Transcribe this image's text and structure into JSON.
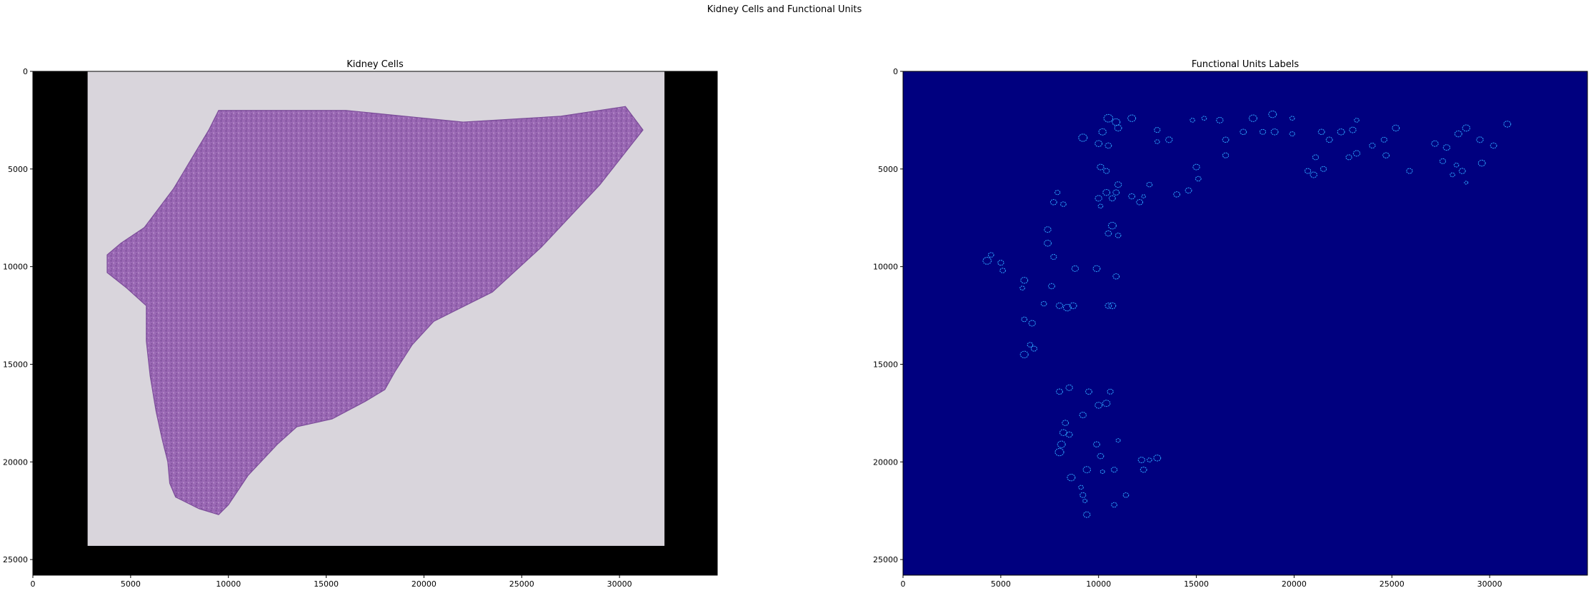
{
  "figure": {
    "suptitle": "Kidney Cells and Functional Units"
  },
  "colors": {
    "background": "#ffffff",
    "black_pad": "#000000",
    "slide": "#d9d5dc",
    "tissue": "#9a68b4",
    "tissue_dark": "#7c4d9a",
    "tissue_light": "#b890cc",
    "label_bg": "#00007f",
    "label_edge": "#2fa8ff"
  },
  "chart_data": [
    {
      "type": "image",
      "title": "Kidney Cells",
      "xlim": [
        0,
        35000
      ],
      "ylim": [
        25800,
        0
      ],
      "x_ticks": [
        0,
        5000,
        10000,
        15000,
        20000,
        25000,
        30000
      ],
      "y_ticks": [
        0,
        5000,
        10000,
        15000,
        20000,
        25000
      ],
      "x_tick_labels": [
        "0",
        "5000",
        "10000",
        "15000",
        "20000",
        "25000",
        "30000"
      ],
      "y_tick_labels": [
        "0",
        "5000",
        "10000",
        "15000",
        "20000",
        "25000"
      ],
      "slide_extent": {
        "x": [
          2800,
          32300
        ],
        "y": [
          0,
          24300
        ]
      },
      "tissue_outline": [
        [
          9500,
          2000
        ],
        [
          16000,
          2000
        ],
        [
          22000,
          2600
        ],
        [
          27000,
          2300
        ],
        [
          30300,
          1800
        ],
        [
          31200,
          3000
        ],
        [
          29000,
          5800
        ],
        [
          26000,
          9000
        ],
        [
          23500,
          11300
        ],
        [
          20500,
          12800
        ],
        [
          19400,
          14000
        ],
        [
          18500,
          15400
        ],
        [
          18000,
          16300
        ],
        [
          17000,
          16900
        ],
        [
          15300,
          17800
        ],
        [
          13500,
          18200
        ],
        [
          12500,
          19100
        ],
        [
          11000,
          20700
        ],
        [
          10000,
          22200
        ],
        [
          9500,
          22700
        ],
        [
          8500,
          22400
        ],
        [
          7300,
          21800
        ],
        [
          7000,
          21100
        ],
        [
          6900,
          20000
        ],
        [
          6600,
          18800
        ],
        [
          6300,
          17400
        ],
        [
          6000,
          15600
        ],
        [
          5800,
          13800
        ],
        [
          5800,
          12000
        ],
        [
          4800,
          11100
        ],
        [
          3800,
          10300
        ],
        [
          3800,
          9400
        ],
        [
          4500,
          8800
        ],
        [
          5700,
          8000
        ],
        [
          7200,
          6000
        ],
        [
          8100,
          4500
        ],
        [
          9000,
          3000
        ]
      ]
    },
    {
      "type": "image",
      "title": "Functional Units Labels",
      "xlim": [
        0,
        35000
      ],
      "ylim": [
        25800,
        0
      ],
      "x_ticks": [
        0,
        5000,
        10000,
        15000,
        20000,
        25000,
        30000
      ],
      "y_ticks": [
        0,
        5000,
        10000,
        15000,
        20000,
        25000
      ],
      "x_tick_labels": [
        "0",
        "5000",
        "10000",
        "15000",
        "20000",
        "25000",
        "30000"
      ],
      "y_tick_labels": [
        "0",
        "5000",
        "10000",
        "15000",
        "20000",
        "25000"
      ],
      "units": [
        [
          10500,
          2400,
          230
        ],
        [
          10900,
          2600,
          200
        ],
        [
          11700,
          2400,
          200
        ],
        [
          11000,
          2900,
          180
        ],
        [
          10200,
          3100,
          190
        ],
        [
          9200,
          3400,
          220
        ],
        [
          10000,
          3700,
          180
        ],
        [
          10500,
          3800,
          160
        ],
        [
          13000,
          3000,
          150
        ],
        [
          13600,
          3500,
          170
        ],
        [
          13000,
          3600,
          120
        ],
        [
          14800,
          2500,
          120
        ],
        [
          15400,
          2400,
          120
        ],
        [
          16200,
          2500,
          170
        ],
        [
          17400,
          3100,
          160
        ],
        [
          17900,
          2400,
          200
        ],
        [
          18400,
          3100,
          150
        ],
        [
          18900,
          2200,
          200
        ],
        [
          19000,
          3100,
          180
        ],
        [
          19900,
          2400,
          120
        ],
        [
          19900,
          3200,
          130
        ],
        [
          21400,
          3100,
          160
        ],
        [
          21800,
          3500,
          160
        ],
        [
          22400,
          3100,
          180
        ],
        [
          23000,
          3000,
          170
        ],
        [
          23200,
          2500,
          120
        ],
        [
          16500,
          3500,
          160
        ],
        [
          16500,
          4300,
          150
        ],
        [
          21100,
          4400,
          150
        ],
        [
          22800,
          4400,
          150
        ],
        [
          23200,
          4200,
          170
        ],
        [
          24000,
          3800,
          150
        ],
        [
          24600,
          3500,
          150
        ],
        [
          24700,
          4300,
          160
        ],
        [
          25200,
          2900,
          180
        ],
        [
          27200,
          3700,
          170
        ],
        [
          27800,
          3900,
          170
        ],
        [
          28400,
          3200,
          180
        ],
        [
          28800,
          2900,
          190
        ],
        [
          29500,
          3500,
          170
        ],
        [
          30200,
          3800,
          160
        ],
        [
          30900,
          2700,
          180
        ],
        [
          27600,
          4600,
          150
        ],
        [
          28300,
          4800,
          120
        ],
        [
          28600,
          5100,
          160
        ],
        [
          29600,
          4700,
          180
        ],
        [
          25900,
          5100,
          150
        ],
        [
          28100,
          5300,
          120
        ],
        [
          28800,
          5700,
          90
        ],
        [
          20700,
          5100,
          150
        ],
        [
          21500,
          5000,
          150
        ],
        [
          21000,
          5300,
          170
        ],
        [
          10100,
          4900,
          170
        ],
        [
          10400,
          5100,
          150
        ],
        [
          11000,
          5800,
          170
        ],
        [
          10900,
          6200,
          160
        ],
        [
          10700,
          6500,
          160
        ],
        [
          10400,
          6200,
          180
        ],
        [
          10000,
          6500,
          170
        ],
        [
          10100,
          6900,
          120
        ],
        [
          11700,
          6400,
          160
        ],
        [
          12100,
          6700,
          160
        ],
        [
          12300,
          6400,
          100
        ],
        [
          12600,
          5800,
          140
        ],
        [
          14000,
          6300,
          160
        ],
        [
          14600,
          6100,
          160
        ],
        [
          15100,
          5500,
          140
        ],
        [
          15000,
          4900,
          170
        ],
        [
          7900,
          6200,
          130
        ],
        [
          7700,
          6700,
          160
        ],
        [
          8200,
          6800,
          140
        ],
        [
          10700,
          7900,
          200
        ],
        [
          10500,
          8300,
          160
        ],
        [
          11000,
          8400,
          140
        ],
        [
          7400,
          8100,
          170
        ],
        [
          7400,
          8800,
          180
        ],
        [
          7700,
          9500,
          150
        ],
        [
          4300,
          9700,
          210
        ],
        [
          4500,
          9400,
          140
        ],
        [
          5000,
          9800,
          150
        ],
        [
          5100,
          10200,
          140
        ],
        [
          6200,
          10700,
          180
        ],
        [
          6100,
          11100,
          120
        ],
        [
          8800,
          10100,
          170
        ],
        [
          9900,
          10100,
          180
        ],
        [
          10900,
          10500,
          160
        ],
        [
          7600,
          11000,
          160
        ],
        [
          7200,
          11900,
          140
        ],
        [
          8000,
          12000,
          170
        ],
        [
          8400,
          12100,
          200
        ],
        [
          8700,
          12000,
          180
        ],
        [
          10500,
          12000,
          160
        ],
        [
          10700,
          12000,
          180
        ],
        [
          6200,
          12700,
          140
        ],
        [
          6600,
          12900,
          170
        ],
        [
          6500,
          14000,
          140
        ],
        [
          6200,
          14500,
          200
        ],
        [
          6700,
          14200,
          150
        ],
        [
          8000,
          16400,
          160
        ],
        [
          8500,
          16200,
          170
        ],
        [
          9500,
          16400,
          160
        ],
        [
          10000,
          17100,
          180
        ],
        [
          10400,
          17000,
          190
        ],
        [
          10600,
          16400,
          150
        ],
        [
          9200,
          17600,
          170
        ],
        [
          8300,
          18000,
          160
        ],
        [
          8200,
          18500,
          180
        ],
        [
          8500,
          18600,
          160
        ],
        [
          8100,
          19100,
          200
        ],
        [
          8000,
          19500,
          220
        ],
        [
          9900,
          19100,
          160
        ],
        [
          10100,
          19700,
          160
        ],
        [
          11000,
          18900,
          110
        ],
        [
          12200,
          19900,
          170
        ],
        [
          12600,
          19900,
          120
        ],
        [
          13000,
          19800,
          180
        ],
        [
          12300,
          20400,
          160
        ],
        [
          9400,
          20400,
          190
        ],
        [
          10800,
          20400,
          150
        ],
        [
          10200,
          20500,
          110
        ],
        [
          8600,
          20800,
          200
        ],
        [
          9100,
          21300,
          120
        ],
        [
          9200,
          21700,
          150
        ],
        [
          9300,
          22000,
          110
        ],
        [
          11400,
          21700,
          140
        ],
        [
          10800,
          22200,
          140
        ],
        [
          9400,
          22700,
          170
        ]
      ]
    }
  ]
}
